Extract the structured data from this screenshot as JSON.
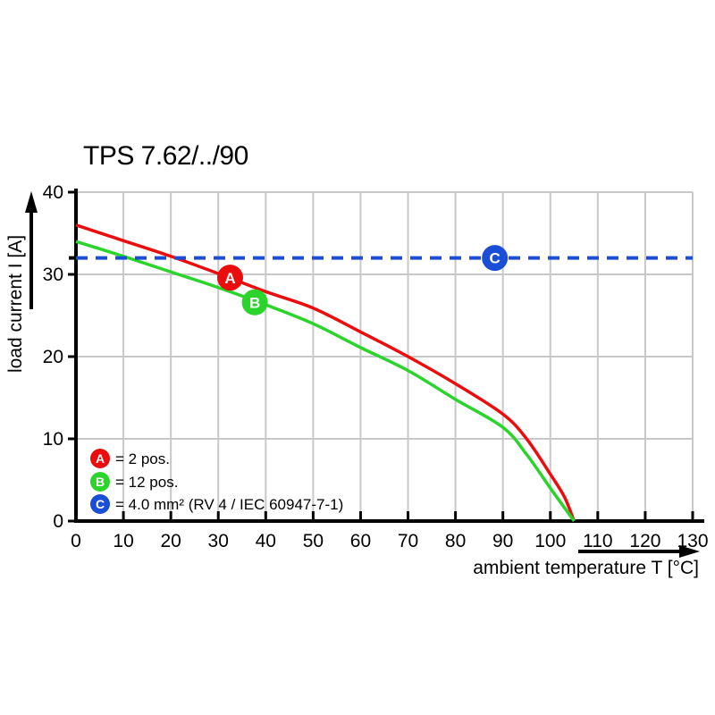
{
  "page": {
    "background": "#ffffff"
  },
  "chart_data": {
    "type": "line",
    "title": "TPS 7.62/../90",
    "xlabel": "ambient temperature T [°C]",
    "ylabel": "load current I [A]",
    "xlim": [
      0,
      130
    ],
    "ylim": [
      0,
      40
    ],
    "x_ticks": [
      0,
      10,
      20,
      30,
      40,
      50,
      60,
      70,
      80,
      90,
      100,
      110,
      120,
      130
    ],
    "y_ticks": [
      0,
      10,
      20,
      30,
      40
    ],
    "grid": true,
    "reference_level": 32,
    "series": [
      {
        "id": "A",
        "name": "2 pos.",
        "color": "#eb0d0d",
        "style": "solid",
        "points": [
          [
            0,
            36
          ],
          [
            10,
            34.1
          ],
          [
            20,
            32.2
          ],
          [
            30,
            30.1
          ],
          [
            40,
            27.9
          ],
          [
            50,
            25.9
          ],
          [
            60,
            23.0
          ],
          [
            70,
            20.0
          ],
          [
            80,
            16.7
          ],
          [
            90,
            13.0
          ],
          [
            95,
            10.0
          ],
          [
            100,
            5.7
          ],
          [
            103,
            2.9
          ],
          [
            105,
            0
          ]
        ],
        "marker": {
          "label": "A",
          "x": 32.5,
          "y": 29.6
        }
      },
      {
        "id": "B",
        "name": "12 pos.",
        "color": "#2bd42b",
        "style": "solid",
        "points": [
          [
            0,
            34
          ],
          [
            10,
            32.2
          ],
          [
            20,
            30.3
          ],
          [
            30,
            28.4
          ],
          [
            40,
            26.3
          ],
          [
            50,
            24.0
          ],
          [
            60,
            21.1
          ],
          [
            70,
            18.3
          ],
          [
            80,
            14.8
          ],
          [
            90,
            11.4
          ],
          [
            95,
            8.1
          ],
          [
            100,
            4.0
          ],
          [
            103,
            1.6
          ],
          [
            105,
            0
          ]
        ],
        "marker": {
          "label": "B",
          "x": 37.7,
          "y": 26.6
        }
      },
      {
        "id": "C",
        "name": "4.0 mm² (RV 4 / IEC 60947-7-1)",
        "color": "#1a4ed6",
        "style": "dashed",
        "points": [
          [
            0,
            32
          ],
          [
            130,
            32
          ]
        ],
        "marker": {
          "label": "C",
          "x": 88.3,
          "y": 32
        }
      }
    ],
    "legend": [
      {
        "label": "A",
        "color": "#eb0d0d",
        "text": "= 2 pos."
      },
      {
        "label": "B",
        "color": "#2bd42b",
        "text": "= 12 pos."
      },
      {
        "label": "C",
        "color": "#1a4ed6",
        "text": "= 4.0 mm² (RV 4 / IEC 60947-7-1)"
      }
    ],
    "legend_position": "lower-left",
    "colors": {
      "grid": "#c8c8c8",
      "axis": "#000000",
      "text": "#000000"
    }
  }
}
